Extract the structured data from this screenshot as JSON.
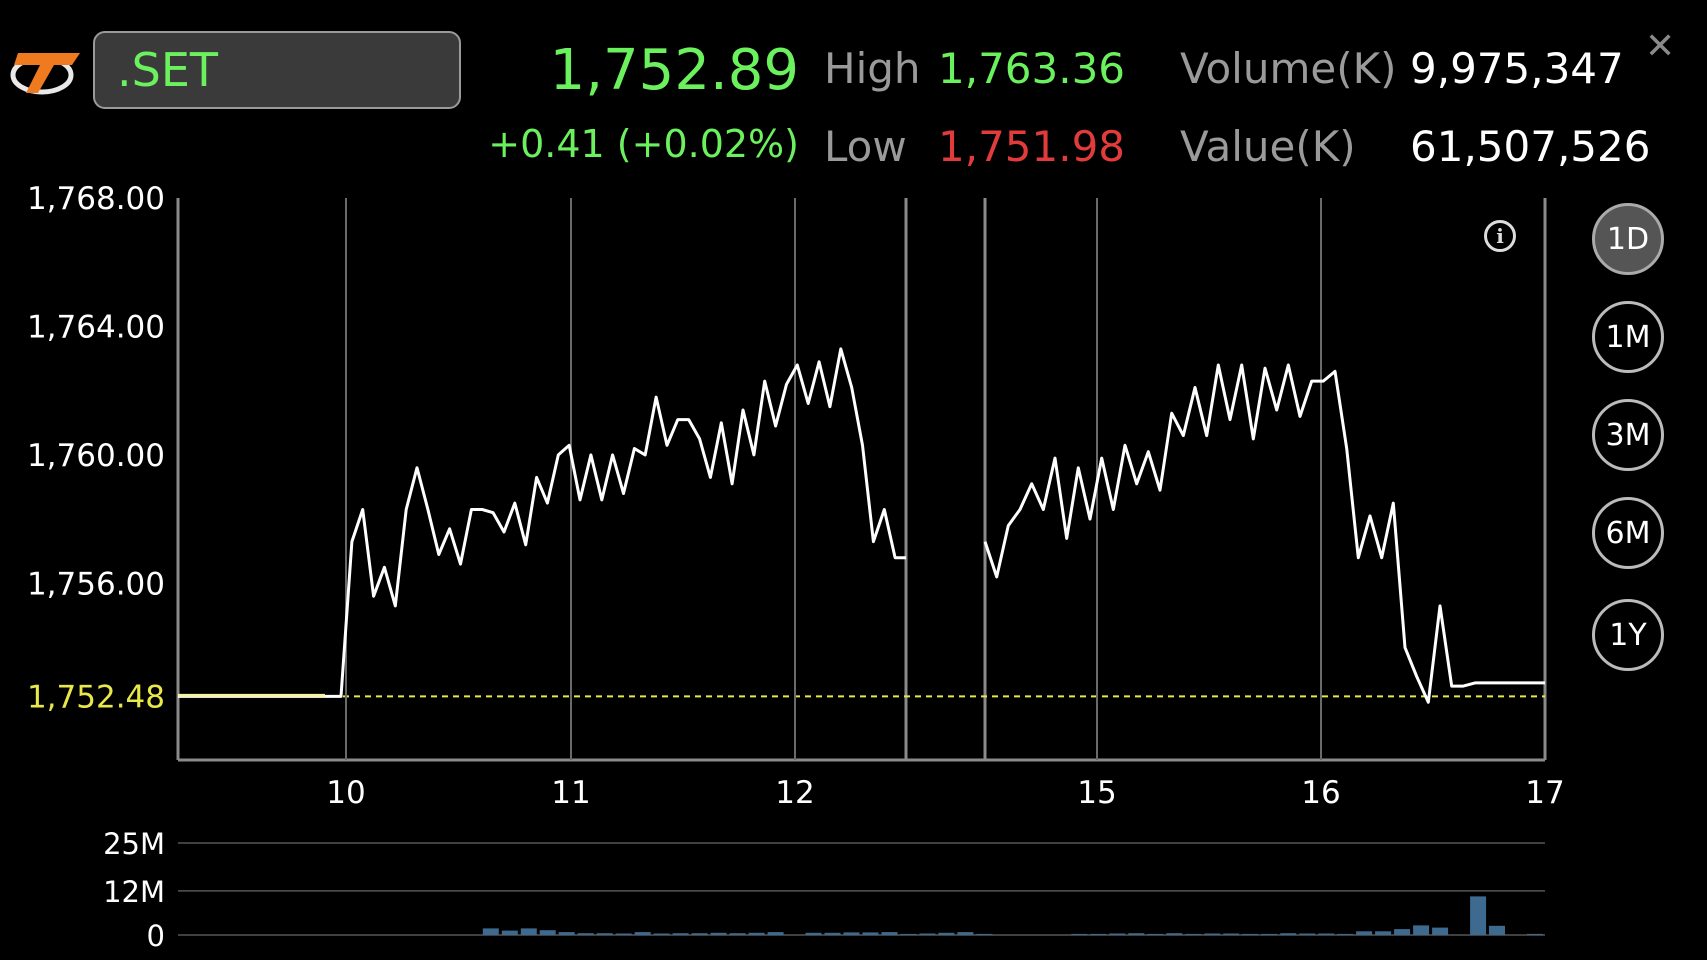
{
  "header": {
    "symbol": ".SET",
    "last_price": "1,752.89",
    "change": "+0.41 (+0.02%)",
    "high_label": "High",
    "high_value": "1,763.36",
    "low_label": "Low",
    "low_value": "1,751.98",
    "volume_label": "Volume(K)",
    "volume_value": "9,975,347",
    "value_label": "Value(K)",
    "value_value": "61,507,526",
    "close_icon": "close-icon",
    "logo_icon": "brand-logo-icon"
  },
  "colors": {
    "up": "#6cf15e",
    "down": "#e23b3b",
    "reference": "#e8e84a",
    "volume_bar": "#3f6a8f"
  },
  "range_buttons": [
    {
      "label": "1D",
      "active": true
    },
    {
      "label": "1M",
      "active": false
    },
    {
      "label": "3M",
      "active": false
    },
    {
      "label": "6M",
      "active": false
    },
    {
      "label": "1Y",
      "active": false
    }
  ],
  "chart_data": {
    "type": "line",
    "ylim": [
      1750.5,
      1768
    ],
    "y_ticks": [
      "1,768.00",
      "1,764.00",
      "1,760.00",
      "1,756.00"
    ],
    "reference_line": {
      "label": "1,752.48",
      "value": 1752.48
    },
    "x_ticks": [
      "10",
      "11",
      "12",
      "15",
      "16",
      "17"
    ],
    "session1_prices": [
      1752.48,
      1752.48,
      1752.48,
      1752.48,
      1752.48,
      1752.48,
      1752.48,
      1752.48,
      1752.48,
      1752.48,
      1752.48,
      1752.48,
      1752.48,
      1752.48,
      1752.48,
      1752.48,
      1757.3,
      1758.3,
      1755.6,
      1756.5,
      1755.3,
      1758.3,
      1759.6,
      1758.3,
      1756.9,
      1757.7,
      1756.6,
      1758.3,
      1758.3,
      1758.2,
      1757.6,
      1758.5,
      1757.2,
      1759.3,
      1758.5,
      1760,
      1760.3,
      1758.6,
      1760,
      1758.6,
      1760,
      1758.8,
      1760.2,
      1760,
      1761.8,
      1760.3,
      1761.1,
      1761.1,
      1760.5,
      1759.3,
      1761,
      1759.1,
      1761.4,
      1760,
      1762.3,
      1760.9,
      1762.2,
      1762.8,
      1761.6,
      1762.9,
      1761.5,
      1763.3,
      1762.1,
      1760.3,
      1757.3,
      1758.3,
      1756.8,
      1756.8
    ],
    "session2_prices": [
      1757.3,
      1756.2,
      1757.8,
      1758.3,
      1759.1,
      1758.3,
      1759.9,
      1757.4,
      1759.6,
      1758,
      1759.9,
      1758.3,
      1760.3,
      1759.1,
      1760.1,
      1758.9,
      1761.3,
      1760.6,
      1762.1,
      1760.6,
      1762.8,
      1761.1,
      1762.8,
      1760.5,
      1762.7,
      1761.4,
      1762.8,
      1761.2,
      1762.3,
      1762.3,
      1762.6,
      1760.2,
      1756.8,
      1758.1,
      1756.8,
      1758.5,
      1754,
      1753.1,
      1752.3,
      1755.3,
      1752.8,
      1752.8,
      1752.9,
      1752.9,
      1752.9,
      1752.9,
      1752.9,
      1752.9,
      1752.9
    ],
    "volume_ylim": [
      0,
      25
    ],
    "volume_ticks": [
      "25M",
      "12M",
      "0"
    ],
    "volume_values": [
      0,
      0,
      0,
      0,
      0,
      0,
      0,
      0,
      0,
      0,
      0,
      0,
      0,
      0,
      0,
      0,
      1.8,
      1.2,
      1.8,
      1.3,
      0.8,
      0.5,
      0.5,
      0.4,
      0.8,
      0.4,
      0.5,
      0.5,
      0.6,
      0.5,
      0.6,
      0.8,
      0,
      0.6,
      0.6,
      0.7,
      0.7,
      0.8,
      0.3,
      0.4,
      0.6,
      0.8,
      0.3,
      0,
      0,
      0,
      0,
      0.3,
      0.3,
      0.4,
      0.5,
      0.3,
      0.5,
      0.3,
      0.4,
      0.4,
      0.3,
      0.3,
      0.5,
      0.4,
      0.4,
      0.3,
      1,
      1,
      1.6,
      2.6,
      2,
      0,
      10.5,
      2.5,
      0,
      0.3
    ]
  }
}
